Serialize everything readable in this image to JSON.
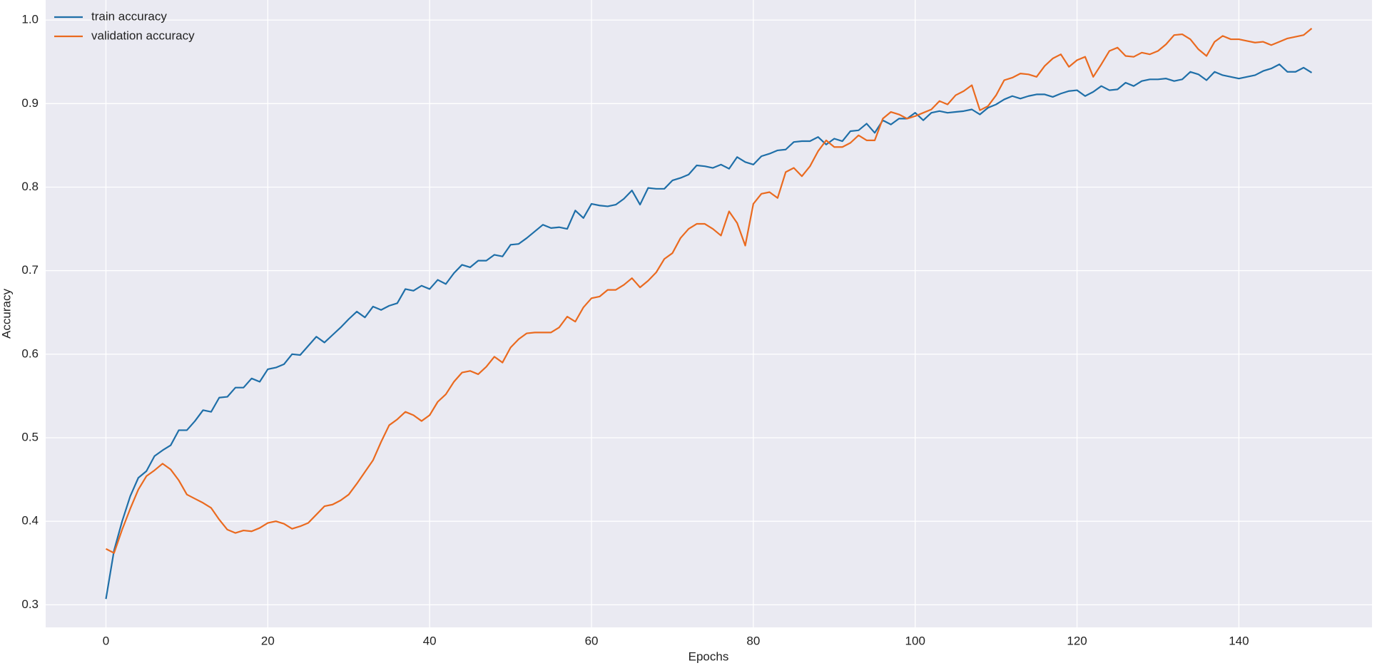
{
  "chart_data": {
    "type": "line",
    "xlabel": "Epochs",
    "ylabel": "Accuracy",
    "x": [
      0,
      1,
      2,
      3,
      4,
      5,
      6,
      7,
      8,
      9,
      10,
      11,
      12,
      13,
      14,
      15,
      16,
      17,
      18,
      19,
      20,
      21,
      22,
      23,
      24,
      25,
      26,
      27,
      28,
      29,
      30,
      31,
      32,
      33,
      34,
      35,
      36,
      37,
      38,
      39,
      40,
      41,
      42,
      43,
      44,
      45,
      46,
      47,
      48,
      49,
      50,
      51,
      52,
      53,
      54,
      55,
      56,
      57,
      58,
      59,
      60,
      61,
      62,
      63,
      64,
      65,
      66,
      67,
      68,
      69,
      70,
      71,
      72,
      73,
      74,
      75,
      76,
      77,
      78,
      79,
      80,
      81,
      82,
      83,
      84,
      85,
      86,
      87,
      88,
      89,
      90,
      91,
      92,
      93,
      94,
      95,
      96,
      97,
      98,
      99,
      100,
      101,
      102,
      103,
      104,
      105,
      106,
      107,
      108,
      109,
      110,
      111,
      112,
      113,
      114,
      115,
      116,
      117,
      118,
      119,
      120,
      121,
      122,
      123,
      124,
      125,
      126,
      127,
      128,
      129,
      130,
      131,
      132,
      133,
      134,
      135,
      136,
      137,
      138,
      139,
      140,
      141,
      142,
      143,
      144,
      145,
      146,
      147,
      148,
      149
    ],
    "series": [
      {
        "name": "train accuracy",
        "color": "#1f6fa8",
        "values": [
          0.307,
          0.365,
          0.4,
          0.43,
          0.452,
          0.46,
          0.478,
          0.485,
          0.491,
          0.509,
          0.509,
          0.52,
          0.533,
          0.531,
          0.548,
          0.549,
          0.56,
          0.56,
          0.571,
          0.567,
          0.582,
          0.584,
          0.588,
          0.6,
          0.599,
          0.61,
          0.621,
          0.614,
          0.623,
          0.632,
          0.642,
          0.651,
          0.644,
          0.657,
          0.653,
          0.658,
          0.661,
          0.678,
          0.676,
          0.682,
          0.678,
          0.689,
          0.684,
          0.697,
          0.707,
          0.704,
          0.712,
          0.712,
          0.719,
          0.717,
          0.731,
          0.732,
          0.739,
          0.747,
          0.755,
          0.751,
          0.752,
          0.75,
          0.772,
          0.763,
          0.78,
          0.778,
          0.777,
          0.779,
          0.786,
          0.796,
          0.779,
          0.799,
          0.798,
          0.798,
          0.808,
          0.811,
          0.815,
          0.826,
          0.825,
          0.823,
          0.827,
          0.822,
          0.836,
          0.83,
          0.827,
          0.837,
          0.84,
          0.844,
          0.845,
          0.854,
          0.855,
          0.855,
          0.86,
          0.851,
          0.858,
          0.855,
          0.867,
          0.868,
          0.876,
          0.865,
          0.88,
          0.875,
          0.882,
          0.882,
          0.889,
          0.88,
          0.889,
          0.891,
          0.889,
          0.89,
          0.891,
          0.893,
          0.887,
          0.895,
          0.899,
          0.905,
          0.909,
          0.906,
          0.909,
          0.911,
          0.911,
          0.908,
          0.912,
          0.915,
          0.916,
          0.909,
          0.914,
          0.921,
          0.916,
          0.917,
          0.925,
          0.921,
          0.927,
          0.929,
          0.929,
          0.93,
          0.927,
          0.929,
          0.938,
          0.935,
          0.928,
          0.938,
          0.934,
          0.932,
          0.93,
          0.932,
          0.934,
          0.939,
          0.942,
          0.947,
          0.938,
          0.938,
          0.943,
          0.937
        ]
      },
      {
        "name": "validation accuracy",
        "color": "#ea6a1f",
        "values": [
          0.367,
          0.362,
          0.39,
          0.415,
          0.438,
          0.454,
          0.461,
          0.469,
          0.462,
          0.449,
          0.432,
          0.427,
          0.422,
          0.416,
          0.402,
          0.39,
          0.386,
          0.389,
          0.388,
          0.392,
          0.398,
          0.4,
          0.397,
          0.391,
          0.394,
          0.398,
          0.408,
          0.418,
          0.42,
          0.425,
          0.432,
          0.445,
          0.459,
          0.473,
          0.495,
          0.515,
          0.522,
          0.531,
          0.527,
          0.52,
          0.527,
          0.543,
          0.552,
          0.567,
          0.578,
          0.58,
          0.576,
          0.585,
          0.597,
          0.59,
          0.608,
          0.618,
          0.625,
          0.626,
          0.626,
          0.626,
          0.632,
          0.645,
          0.639,
          0.656,
          0.667,
          0.669,
          0.677,
          0.677,
          0.683,
          0.691,
          0.68,
          0.688,
          0.698,
          0.714,
          0.721,
          0.739,
          0.75,
          0.756,
          0.756,
          0.75,
          0.742,
          0.771,
          0.757,
          0.73,
          0.78,
          0.792,
          0.794,
          0.787,
          0.818,
          0.823,
          0.813,
          0.825,
          0.843,
          0.856,
          0.848,
          0.848,
          0.853,
          0.862,
          0.856,
          0.856,
          0.882,
          0.89,
          0.887,
          0.882,
          0.885,
          0.889,
          0.893,
          0.903,
          0.899,
          0.91,
          0.915,
          0.922,
          0.892,
          0.897,
          0.91,
          0.928,
          0.931,
          0.936,
          0.935,
          0.932,
          0.945,
          0.954,
          0.959,
          0.944,
          0.952,
          0.956,
          0.932,
          0.947,
          0.963,
          0.967,
          0.957,
          0.956,
          0.961,
          0.959,
          0.963,
          0.971,
          0.982,
          0.983,
          0.977,
          0.965,
          0.957,
          0.974,
          0.981,
          0.977,
          0.977,
          0.975,
          0.973,
          0.974,
          0.97,
          0.974,
          0.978,
          0.98,
          0.982,
          0.99
        ]
      }
    ],
    "xlim": [
      -7.45,
      156.45
    ],
    "ylim": [
      0.273,
      1.024
    ],
    "xticks": [
      0,
      20,
      40,
      60,
      80,
      100,
      120,
      140
    ],
    "yticks": [
      0.3,
      0.4,
      0.5,
      0.6,
      0.7,
      0.8,
      0.9,
      {
        "value": 1,
        "label": "1.0"
      }
    ],
    "grid": true,
    "legend": "upper-left"
  }
}
